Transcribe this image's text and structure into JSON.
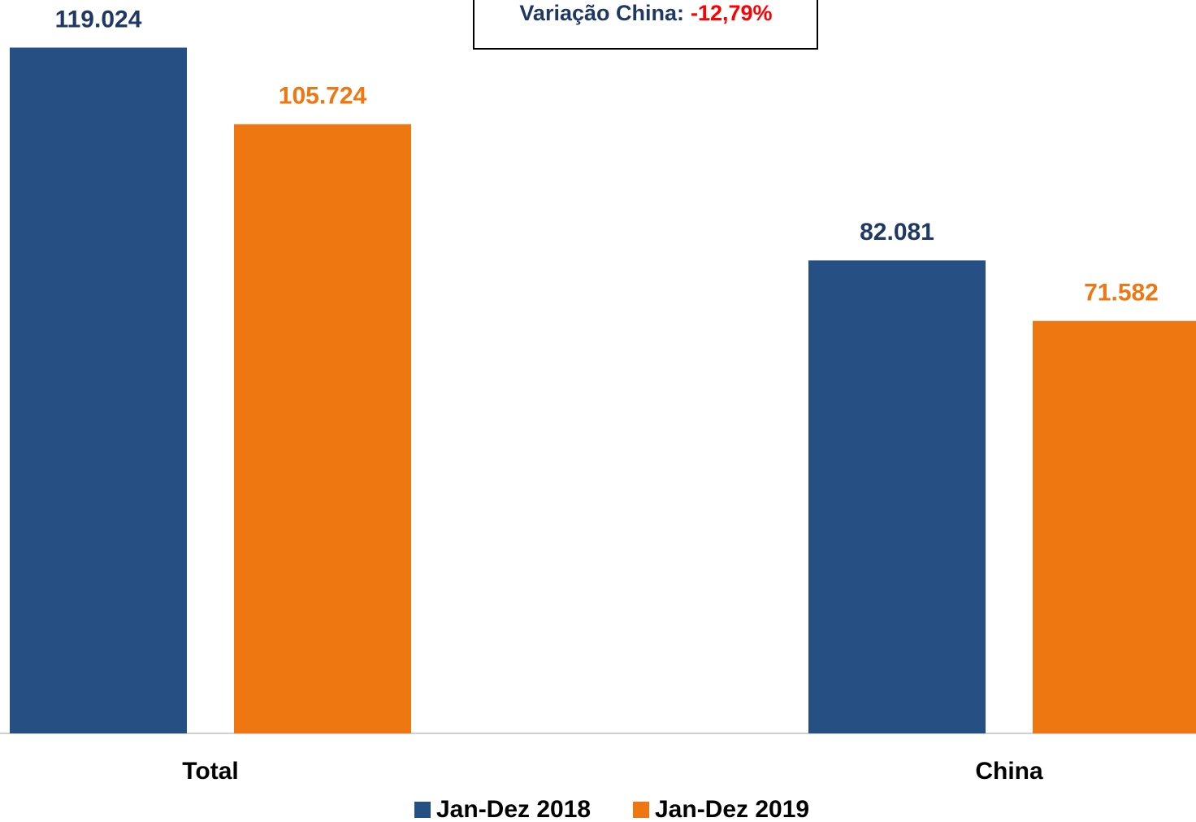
{
  "chart_data": {
    "type": "bar",
    "categories": [
      "Total",
      "China"
    ],
    "series": [
      {
        "name": "Jan-Dez 2018",
        "color": "#264f84",
        "label_color": "#1f3864",
        "values": [
          119024,
          82081
        ],
        "value_labels": [
          "119.024",
          "82.081"
        ]
      },
      {
        "name": "Jan-Dez 2019",
        "color": "#ef7711",
        "label_color": "#ef7711",
        "values": [
          105724,
          71582
        ],
        "value_labels": [
          "105.724",
          "71.582"
        ]
      }
    ],
    "ylim": [
      0,
      127000
    ],
    "annotation": {
      "text": "Variação China:",
      "value": "-12,79%",
      "value_color": "#ff0000"
    },
    "legend": "bottom"
  }
}
